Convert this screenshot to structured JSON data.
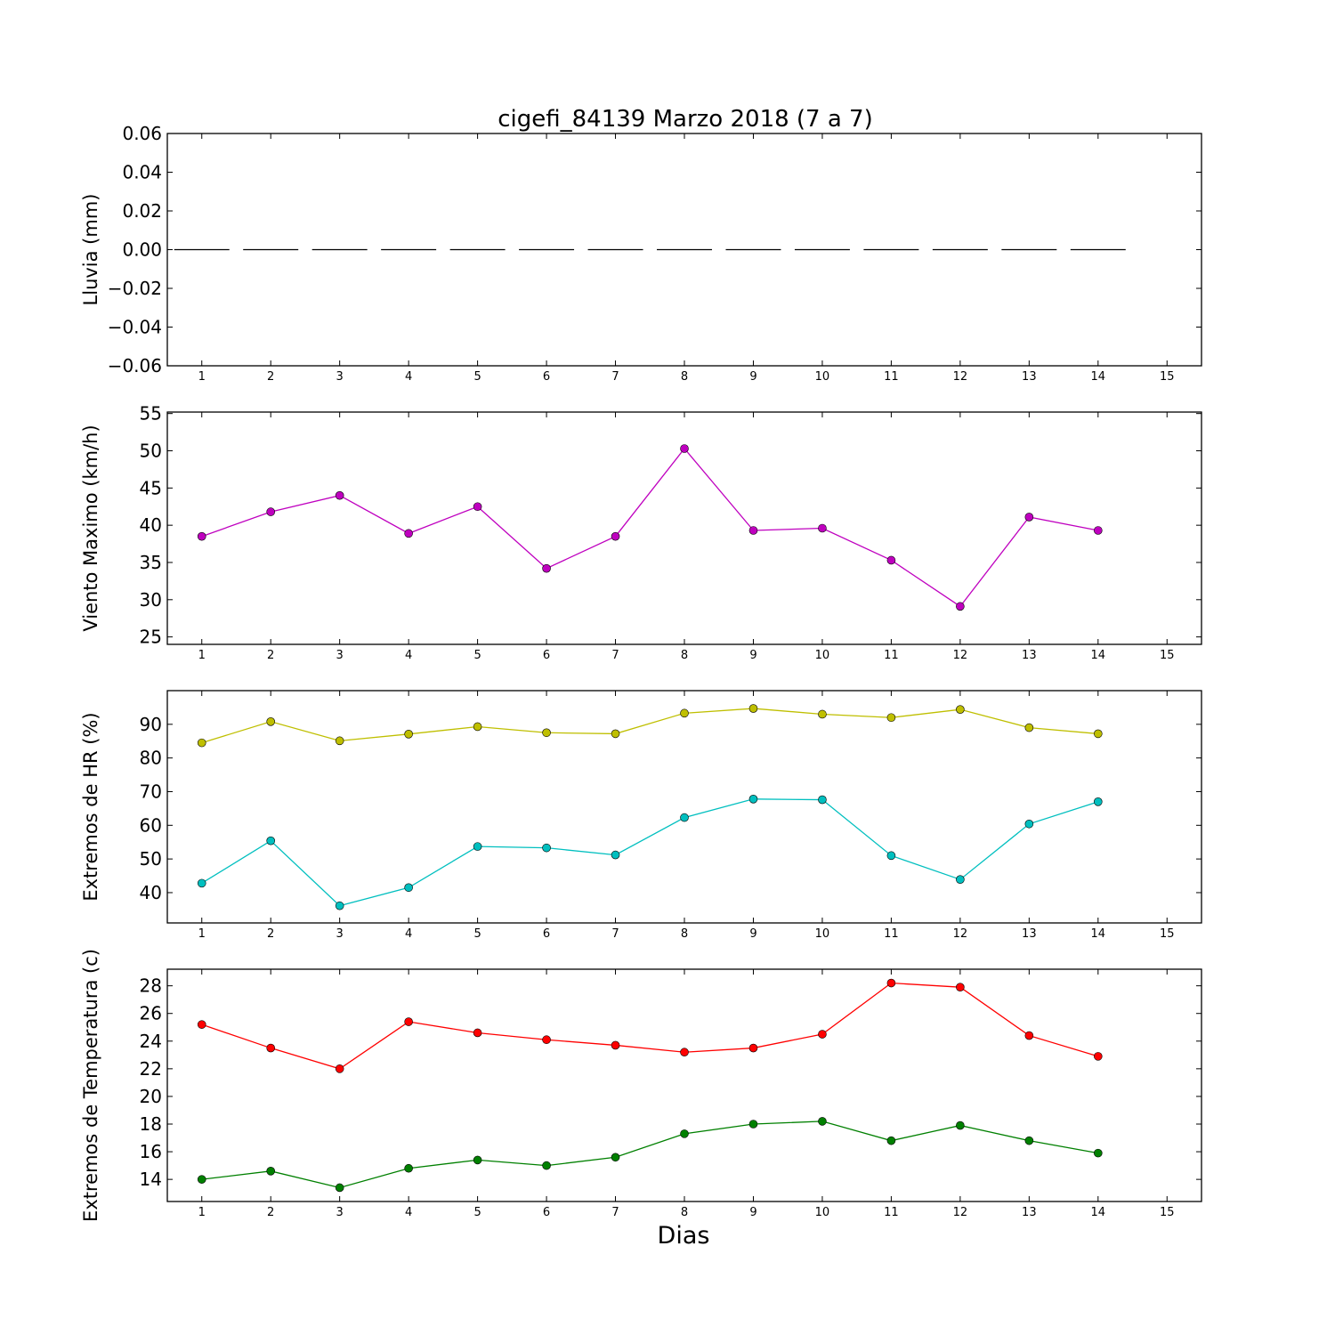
{
  "figure": {
    "title": "cigefi_84139 Marzo 2018  (7 a 7)",
    "xlabel": "Dias"
  },
  "chart_data": [
    {
      "type": "bar",
      "ylabel": "Lluvia (mm)",
      "xlim": [
        0.5,
        15.5
      ],
      "ylim": [
        -0.06,
        0.06
      ],
      "xticks": [
        1,
        2,
        3,
        4,
        5,
        6,
        7,
        8,
        9,
        10,
        11,
        12,
        13,
        14,
        15
      ],
      "yticks": [
        -0.06,
        -0.04,
        -0.02,
        0.0,
        0.02,
        0.04,
        0.06
      ],
      "ytick_labels": [
        "−0.06",
        "−0.04",
        "−0.02",
        "0.00",
        "0.02",
        "0.04",
        "0.06"
      ],
      "grid": false,
      "series": [
        {
          "color": "#000000",
          "x": [
            1,
            2,
            3,
            4,
            5,
            6,
            7,
            8,
            9,
            10,
            11,
            12,
            13,
            14
          ],
          "values": [
            0,
            0,
            0,
            0,
            0,
            0,
            0,
            0,
            0,
            0,
            0,
            0,
            0,
            0
          ]
        }
      ]
    },
    {
      "type": "line",
      "ylabel": "Viento Maximo (km/h)",
      "xlim": [
        0.5,
        15.5
      ],
      "ylim": [
        24,
        55.2
      ],
      "xticks": [
        1,
        2,
        3,
        4,
        5,
        6,
        7,
        8,
        9,
        10,
        11,
        12,
        13,
        14,
        15
      ],
      "yticks": [
        25,
        30,
        35,
        40,
        45,
        50,
        55
      ],
      "ytick_labels": [
        "25",
        "30",
        "35",
        "40",
        "45",
        "50",
        "55"
      ],
      "grid": false,
      "series": [
        {
          "color": "#bf00bf",
          "x": [
            1,
            2,
            3,
            4,
            5,
            6,
            7,
            8,
            9,
            10,
            11,
            12,
            13,
            14
          ],
          "values": [
            38.5,
            41.8,
            44.0,
            38.9,
            42.5,
            34.2,
            38.5,
            50.3,
            39.3,
            39.6,
            35.3,
            29.1,
            41.1,
            39.3
          ]
        }
      ]
    },
    {
      "type": "line",
      "ylabel": "Extremos de HR (%)",
      "xlim": [
        0.5,
        15.5
      ],
      "ylim": [
        31,
        100
      ],
      "xticks": [
        1,
        2,
        3,
        4,
        5,
        6,
        7,
        8,
        9,
        10,
        11,
        12,
        13,
        14,
        15
      ],
      "yticks": [
        40,
        50,
        60,
        70,
        80,
        90
      ],
      "ytick_labels": [
        "40",
        "50",
        "60",
        "70",
        "80",
        "90"
      ],
      "grid": false,
      "series": [
        {
          "color": "#bfbf00",
          "x": [
            1,
            2,
            3,
            4,
            5,
            6,
            7,
            8,
            9,
            10,
            11,
            12,
            13,
            14
          ],
          "values": [
            84.5,
            90.8,
            85.1,
            87.1,
            89.3,
            87.5,
            87.2,
            93.3,
            94.7,
            93.0,
            92.0,
            94.4,
            89.0,
            87.2
          ]
        },
        {
          "color": "#00bfbf",
          "x": [
            1,
            2,
            3,
            4,
            5,
            6,
            7,
            8,
            9,
            10,
            11,
            12,
            13,
            14
          ],
          "values": [
            42.8,
            55.4,
            36.1,
            41.5,
            53.7,
            53.3,
            51.2,
            62.3,
            67.8,
            67.6,
            51.0,
            43.9,
            60.4,
            67.0
          ]
        }
      ]
    },
    {
      "type": "line",
      "ylabel": "Extremos de Temperatura (c)",
      "xlim": [
        0.5,
        15.5
      ],
      "ylim": [
        12.4,
        29.2
      ],
      "xticks": [
        1,
        2,
        3,
        4,
        5,
        6,
        7,
        8,
        9,
        10,
        11,
        12,
        13,
        14,
        15
      ],
      "yticks": [
        14,
        16,
        18,
        20,
        22,
        24,
        26,
        28
      ],
      "ytick_labels": [
        "14",
        "16",
        "18",
        "20",
        "22",
        "24",
        "26",
        "28"
      ],
      "grid": false,
      "series": [
        {
          "color": "#ff0000",
          "x": [
            1,
            2,
            3,
            4,
            5,
            6,
            7,
            8,
            9,
            10,
            11,
            12,
            13,
            14
          ],
          "values": [
            25.2,
            23.5,
            22.0,
            25.4,
            24.6,
            24.1,
            23.7,
            23.2,
            23.5,
            24.5,
            28.2,
            27.9,
            24.4,
            22.9
          ]
        },
        {
          "color": "#008000",
          "x": [
            1,
            2,
            3,
            4,
            5,
            6,
            7,
            8,
            9,
            10,
            11,
            12,
            13,
            14
          ],
          "values": [
            14.0,
            14.6,
            13.4,
            14.8,
            15.4,
            15.0,
            15.6,
            17.3,
            18.0,
            18.2,
            16.8,
            17.9,
            16.8,
            15.9
          ]
        }
      ]
    }
  ]
}
